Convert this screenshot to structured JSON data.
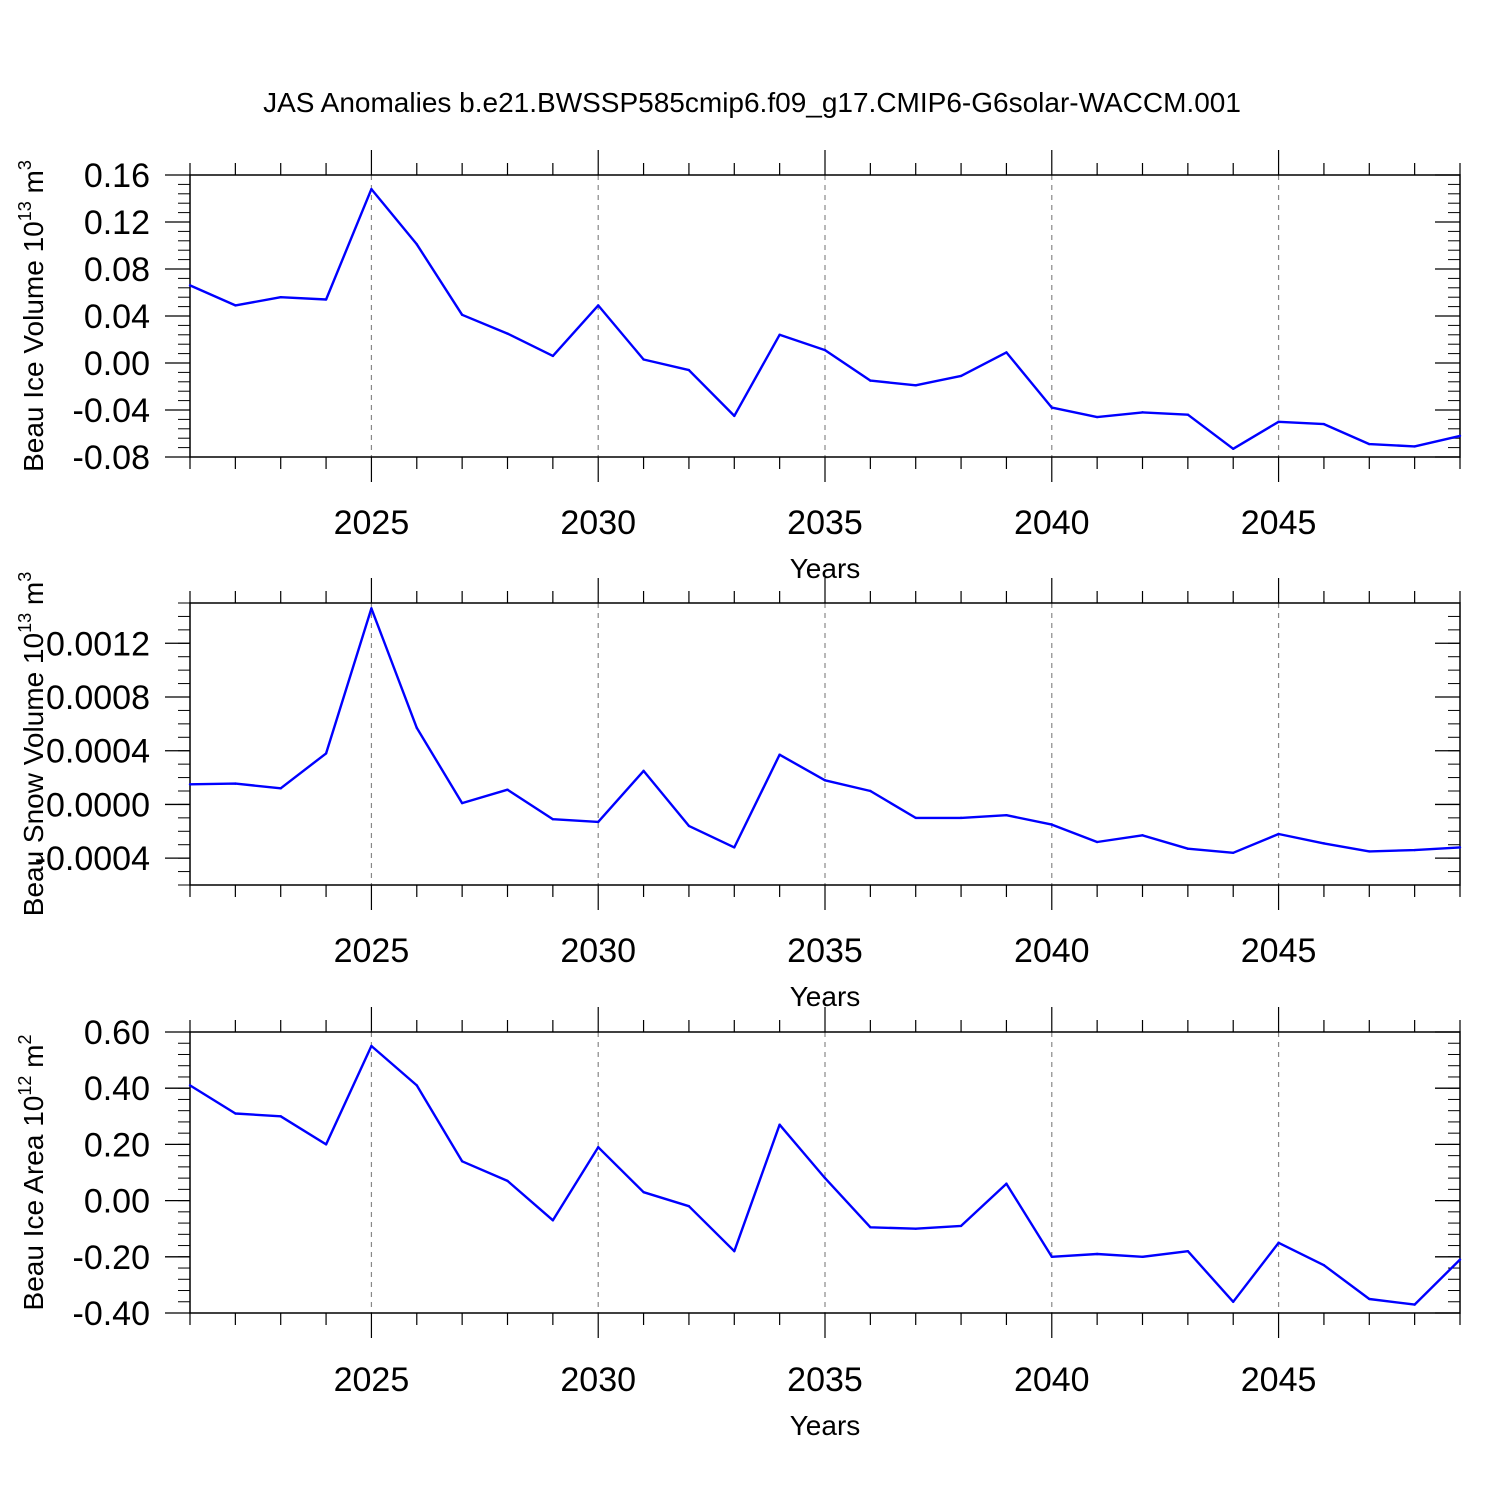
{
  "title": "JAS Anomalies b.e21.BWSSP585cmip6.f09_g17.CMIP6-G6solar-WACCM.001",
  "colors": {
    "line": "#0000ff",
    "axis": "#000000",
    "grid": "#888888"
  },
  "chart_data": [
    {
      "type": "line",
      "ylabel": {
        "main": "Beau Ice Volume 10",
        "sup": "13",
        "unit": " m",
        "unit_sup": "3"
      },
      "xlabel": "Years",
      "xlim": [
        2021,
        2049
      ],
      "ylim": [
        -0.08,
        0.16
      ],
      "yticks": [
        {
          "v": 0.16,
          "t": "0.16"
        },
        {
          "v": 0.12,
          "t": "0.12"
        },
        {
          "v": 0.08,
          "t": "0.08"
        },
        {
          "v": 0.04,
          "t": "0.04"
        },
        {
          "v": 0.0,
          "t": "0.00"
        },
        {
          "v": -0.04,
          "t": "-0.04"
        },
        {
          "v": -0.08,
          "t": "-0.08"
        }
      ],
      "yminor_step": 0.008,
      "xticks": [
        2025,
        2030,
        2035,
        2040,
        2045
      ],
      "grid_x": true,
      "x": [
        2021,
        2022,
        2023,
        2024,
        2025,
        2026,
        2027,
        2028,
        2029,
        2030,
        2031,
        2032,
        2033,
        2034,
        2035,
        2036,
        2037,
        2038,
        2039,
        2040,
        2041,
        2042,
        2043,
        2044,
        2045,
        2046,
        2047,
        2048,
        2049
      ],
      "values": [
        0.066,
        0.049,
        0.056,
        0.054,
        0.148,
        0.101,
        0.041,
        0.025,
        0.006,
        0.049,
        0.003,
        -0.006,
        -0.045,
        0.024,
        0.011,
        -0.015,
        -0.019,
        -0.011,
        0.009,
        -0.038,
        -0.046,
        -0.042,
        -0.044,
        -0.073,
        -0.05,
        -0.052,
        -0.069,
        -0.071,
        -0.062
      ]
    },
    {
      "type": "line",
      "ylabel": {
        "main": "Beau Snow Volume 10",
        "sup": "13",
        "unit": " m",
        "unit_sup": "3"
      },
      "xlabel": "Years",
      "xlim": [
        2021,
        2049
      ],
      "ylim": [
        -0.0006,
        0.0015
      ],
      "yticks": [
        {
          "v": 0.0012,
          "t": "0.0012"
        },
        {
          "v": 0.0008,
          "t": "0.0008"
        },
        {
          "v": 0.0004,
          "t": "0.0004"
        },
        {
          "v": 0.0,
          "t": "0.0000"
        },
        {
          "v": -0.0004,
          "t": "-0.0004"
        }
      ],
      "yminor_step": 0.0001,
      "xticks": [
        2025,
        2030,
        2035,
        2040,
        2045
      ],
      "grid_x": true,
      "x": [
        2021,
        2022,
        2023,
        2024,
        2025,
        2026,
        2027,
        2028,
        2029,
        2030,
        2031,
        2032,
        2033,
        2034,
        2035,
        2036,
        2037,
        2038,
        2039,
        2040,
        2041,
        2042,
        2043,
        2044,
        2045,
        2046,
        2047,
        2048,
        2049
      ],
      "values": [
        0.00015,
        0.000155,
        0.00012,
        0.00038,
        0.00146,
        0.00057,
        1e-05,
        0.00011,
        -0.00011,
        -0.00013,
        0.00025,
        -0.00016,
        -0.00032,
        0.00037,
        0.00018,
        0.0001,
        -0.0001,
        -0.0001,
        -8e-05,
        -0.00015,
        -0.00028,
        -0.00023,
        -0.00033,
        -0.00036,
        -0.00022,
        -0.00029,
        -0.00035,
        -0.00034,
        -0.00032
      ]
    },
    {
      "type": "line",
      "ylabel": {
        "main": "Beau Ice Area 10",
        "sup": "12",
        "unit": " m",
        "unit_sup": "2"
      },
      "xlabel": "Years",
      "xlim": [
        2021,
        2049
      ],
      "ylim": [
        -0.4,
        0.6
      ],
      "yticks": [
        {
          "v": 0.6,
          "t": "0.60"
        },
        {
          "v": 0.4,
          "t": "0.40"
        },
        {
          "v": 0.2,
          "t": "0.20"
        },
        {
          "v": 0.0,
          "t": "0.00"
        },
        {
          "v": -0.2,
          "t": "-0.20"
        },
        {
          "v": -0.4,
          "t": "-0.40"
        }
      ],
      "yminor_step": 0.04,
      "xticks": [
        2025,
        2030,
        2035,
        2040,
        2045
      ],
      "grid_x": true,
      "x": [
        2021,
        2022,
        2023,
        2024,
        2025,
        2026,
        2027,
        2028,
        2029,
        2030,
        2031,
        2032,
        2033,
        2034,
        2035,
        2036,
        2037,
        2038,
        2039,
        2040,
        2041,
        2042,
        2043,
        2044,
        2045,
        2046,
        2047,
        2048,
        2049
      ],
      "values": [
        0.41,
        0.31,
        0.3,
        0.2,
        0.55,
        0.41,
        0.14,
        0.07,
        -0.07,
        0.19,
        0.03,
        -0.02,
        -0.18,
        0.27,
        0.08,
        -0.095,
        -0.1,
        -0.09,
        0.06,
        -0.2,
        -0.19,
        -0.2,
        -0.18,
        -0.36,
        -0.15,
        -0.23,
        -0.35,
        -0.37,
        -0.21
      ]
    }
  ]
}
